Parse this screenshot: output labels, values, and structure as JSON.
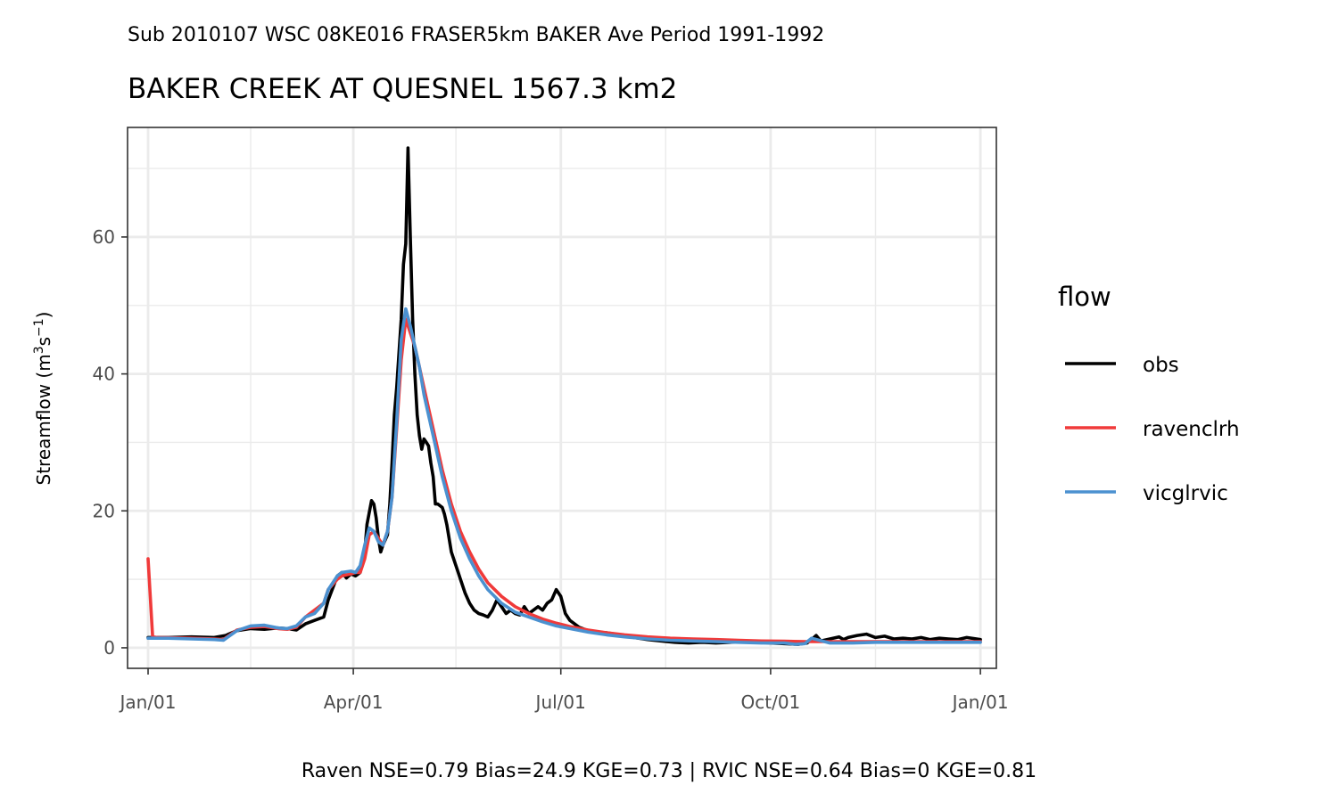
{
  "chart_data": {
    "type": "line",
    "subtitle": "Sub 2010107 WSC 08KE016 FRASER5km BAKER Ave Period 1991-1992",
    "title": "BAKER CREEK AT QUESNEL 1567.3 km2",
    "xlabel": "",
    "ylabel": "Streamflow (m3s-1)",
    "ylabel_parts": {
      "prefix": "Streamflow (m",
      "sup1": "3",
      "mid": "s",
      "sup2": "−1",
      "suffix": ")"
    },
    "caption": "Raven NSE=0.79 Bias=24.9 KGE=0.73 | RVIC NSE=0.64 Bias=0 KGE=0.81",
    "x_unit": "day of year",
    "xlim": [
      -8,
      373
    ],
    "ylim": [
      -3,
      76
    ],
    "x_ticks": [
      {
        "label": "Jan/01",
        "value": 1
      },
      {
        "label": "Apr/01",
        "value": 91
      },
      {
        "label": "Jul/01",
        "value": 182
      },
      {
        "label": "Oct/01",
        "value": 274
      },
      {
        "label": "Jan/01",
        "value": 366
      }
    ],
    "x_minor_ticks": [
      46,
      136,
      228,
      320
    ],
    "y_ticks": [
      0,
      20,
      40,
      60
    ],
    "y_minor_ticks": [
      10,
      30,
      50,
      70
    ],
    "grid": true,
    "legend": {
      "title": "flow",
      "position": "right"
    },
    "series": [
      {
        "name": "obs",
        "color": "#000000",
        "x": [
          1,
          10,
          20,
          30,
          35,
          40,
          46,
          52,
          58,
          62,
          66,
          70,
          74,
          78,
          80,
          84,
          86,
          88,
          90,
          92,
          94,
          96,
          97,
          99,
          100,
          101,
          102,
          103,
          104,
          106,
          107,
          108,
          109,
          110,
          112,
          113,
          114,
          115,
          116,
          117,
          118,
          119,
          120,
          121,
          122,
          123,
          124,
          125,
          126,
          127,
          128,
          130,
          131,
          132,
          134,
          136,
          137,
          138,
          140,
          142,
          144,
          146,
          148,
          150,
          152,
          154,
          156,
          158,
          160,
          162,
          164,
          166,
          168,
          170,
          172,
          174,
          176,
          178,
          180,
          182,
          184,
          186,
          188,
          190,
          194,
          198,
          202,
          206,
          210,
          214,
          220,
          226,
          232,
          238,
          244,
          250,
          256,
          262,
          268,
          274,
          280,
          286,
          290,
          292,
          294,
          296,
          300,
          304,
          306,
          308,
          312,
          316,
          320,
          324,
          328,
          332,
          336,
          340,
          344,
          348,
          352,
          356,
          360,
          366
        ],
        "values": [
          1.5,
          1.5,
          1.6,
          1.5,
          1.8,
          2.5,
          2.8,
          2.7,
          2.9,
          2.8,
          2.6,
          3.5,
          4.0,
          4.5,
          7.0,
          10.5,
          11.0,
          10.2,
          10.8,
          10.5,
          11.0,
          14.0,
          18.0,
          21.5,
          21.0,
          19.0,
          16.0,
          14.0,
          15.0,
          16.5,
          21.0,
          27.0,
          34.0,
          38.0,
          48.0,
          56.0,
          59.0,
          73.0,
          60.0,
          48.0,
          40.0,
          34.0,
          31.0,
          29.0,
          30.5,
          30.0,
          29.5,
          27.0,
          25.0,
          21.0,
          21.0,
          20.5,
          19.5,
          18.0,
          14.0,
          12.0,
          11.0,
          10.0,
          8.0,
          6.5,
          5.5,
          5.0,
          4.8,
          4.5,
          5.5,
          7.0,
          6.0,
          5.0,
          5.5,
          5.0,
          4.8,
          6.0,
          5.0,
          5.5,
          6.0,
          5.5,
          6.5,
          7.0,
          8.5,
          7.5,
          5.0,
          4.0,
          3.5,
          3.0,
          2.5,
          2.3,
          2.2,
          2.0,
          1.8,
          1.5,
          1.2,
          1.0,
          0.8,
          0.7,
          0.8,
          0.7,
          0.8,
          0.9,
          0.8,
          0.7,
          0.6,
          0.5,
          0.7,
          1.2,
          1.8,
          1.0,
          1.3,
          1.6,
          1.2,
          1.5,
          1.8,
          2.0,
          1.5,
          1.7,
          1.3,
          1.4,
          1.3,
          1.5,
          1.2,
          1.4,
          1.3,
          1.2,
          1.5,
          1.2
        ]
      },
      {
        "name": "ravenclrh",
        "color": "#f03a3a",
        "x": [
          1,
          3,
          5,
          20,
          30,
          34,
          40,
          46,
          52,
          58,
          62,
          66,
          70,
          74,
          78,
          80,
          84,
          86,
          90,
          92,
          94,
          96,
          98,
          100,
          102,
          104,
          106,
          108,
          110,
          112,
          114,
          116,
          118,
          120,
          122,
          124,
          126,
          128,
          130,
          134,
          138,
          142,
          146,
          150,
          156,
          162,
          168,
          174,
          180,
          186,
          194,
          202,
          210,
          220,
          230,
          240,
          250,
          260,
          270,
          280,
          290,
          300,
          310,
          320,
          330,
          340,
          350,
          360,
          366
        ],
        "values": [
          13.0,
          1.6,
          1.5,
          1.4,
          1.3,
          1.2,
          2.6,
          3.0,
          3.1,
          2.8,
          2.7,
          3.0,
          4.5,
          5.5,
          6.5,
          8.5,
          10.0,
          10.5,
          10.8,
          11.0,
          11.0,
          13.0,
          16.5,
          17.0,
          16.0,
          15.0,
          17.0,
          22.0,
          32.0,
          42.0,
          48.0,
          46.0,
          44.0,
          41.0,
          38.0,
          35.0,
          32.0,
          29.0,
          26.0,
          21.0,
          17.0,
          14.0,
          11.5,
          9.5,
          7.5,
          6.0,
          5.0,
          4.2,
          3.6,
          3.1,
          2.6,
          2.2,
          1.9,
          1.6,
          1.4,
          1.3,
          1.2,
          1.1,
          1.0,
          0.95,
          0.9,
          0.9,
          0.9,
          0.9,
          0.9,
          0.9,
          0.9,
          0.9,
          0.9
        ]
      },
      {
        "name": "vicglrvic",
        "color": "#4b91d0",
        "x": [
          1,
          10,
          20,
          30,
          34,
          40,
          46,
          52,
          58,
          62,
          66,
          70,
          74,
          78,
          80,
          84,
          86,
          90,
          92,
          94,
          96,
          98,
          100,
          102,
          104,
          106,
          108,
          110,
          112,
          114,
          116,
          118,
          120,
          122,
          124,
          126,
          128,
          130,
          134,
          138,
          142,
          146,
          150,
          156,
          162,
          168,
          174,
          180,
          186,
          194,
          202,
          210,
          220,
          230,
          240,
          250,
          260,
          270,
          280,
          285,
          289,
          292,
          300,
          310,
          320,
          330,
          340,
          350,
          360,
          366
        ],
        "values": [
          1.4,
          1.4,
          1.3,
          1.2,
          1.1,
          2.5,
          3.2,
          3.3,
          2.9,
          2.8,
          3.2,
          4.5,
          5.0,
          6.5,
          8.5,
          10.5,
          11.0,
          11.2,
          11.0,
          12.0,
          15.0,
          17.5,
          17.0,
          15.5,
          15.0,
          17.0,
          22.0,
          33.0,
          45.0,
          49.5,
          47.0,
          44.0,
          41.0,
          37.0,
          34.0,
          31.0,
          28.0,
          25.0,
          20.0,
          16.0,
          13.0,
          10.5,
          8.5,
          6.5,
          5.2,
          4.5,
          3.8,
          3.2,
          2.8,
          2.3,
          1.9,
          1.6,
          1.3,
          1.1,
          1.0,
          0.9,
          0.8,
          0.7,
          0.7,
          0.5,
          0.6,
          1.4,
          0.7,
          0.7,
          0.8,
          0.8,
          0.8,
          0.8,
          0.8,
          0.8
        ]
      }
    ]
  }
}
